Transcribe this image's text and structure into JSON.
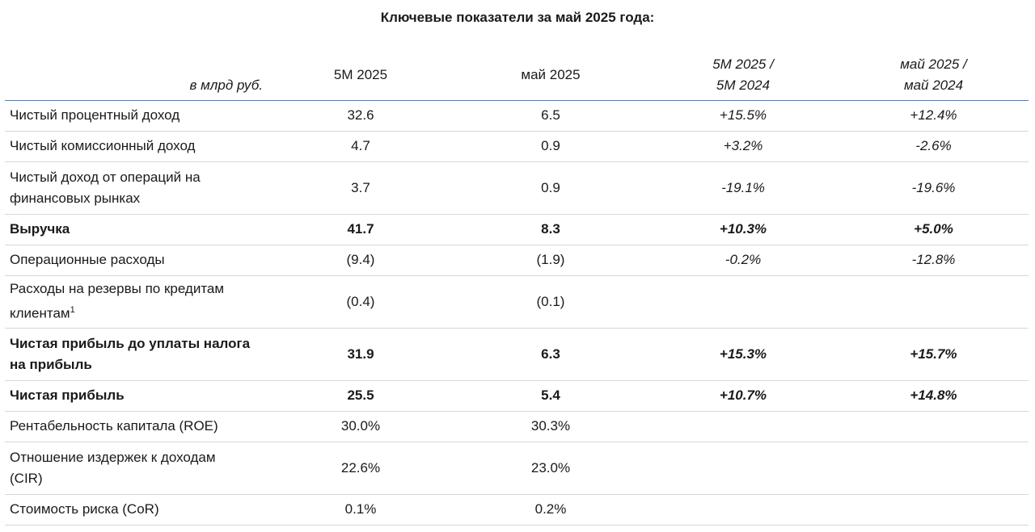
{
  "title": "Ключевые показатели за май 2025 года:",
  "header": {
    "unit": "в млрд руб.",
    "col1": "5M 2025",
    "col2": "май 2025",
    "col3_line1": "5M 2025 /",
    "col3_line2": "5M 2024",
    "col4_line1": "май 2025 /",
    "col4_line2": "май 2024"
  },
  "rows": [
    {
      "label": "Чистый процентный доход",
      "v5m": "32.6",
      "vmay": "6.5",
      "yoy5m": "+15.5%",
      "yoymay": "+12.4%"
    },
    {
      "label": "Чистый комиссионный доход",
      "v5m": "4.7",
      "vmay": "0.9",
      "yoy5m": "+3.2%",
      "yoymay": "-2.6%"
    },
    {
      "label_line1": "Чистый доход от операций на",
      "label_line2": "финансовых рынках",
      "v5m": "3.7",
      "vmay": "0.9",
      "yoy5m": "-19.1%",
      "yoymay": "-19.6%"
    },
    {
      "label": "Выручка",
      "v5m": "41.7",
      "vmay": "8.3",
      "yoy5m": "+10.3%",
      "yoymay": "+5.0%"
    },
    {
      "label": "Операционные расходы",
      "v5m": "(9.4)",
      "vmay": "(1.9)",
      "yoy5m": "-0.2%",
      "yoymay": "-12.8%"
    },
    {
      "label_line1": "Расходы на резервы по кредитам",
      "label_line2": "клиентам",
      "footnote": "1",
      "v5m": "(0.4)",
      "vmay": "(0.1)",
      "yoy5m": "",
      "yoymay": ""
    },
    {
      "label_line1": "Чистая прибыль до уплаты налога",
      "label_line2": "на прибыль",
      "v5m": "31.9",
      "vmay": "6.3",
      "yoy5m": "+15.3%",
      "yoymay": "+15.7%"
    },
    {
      "label": "Чистая прибыль",
      "v5m": "25.5",
      "vmay": "5.4",
      "yoy5m": "+10.7%",
      "yoymay": "+14.8%"
    },
    {
      "label": "Рентабельность капитала (ROE)",
      "v5m": "30.0%",
      "vmay": "30.3%",
      "yoy5m": "",
      "yoymay": ""
    },
    {
      "label_line1": "Отношение издержек к доходам",
      "label_line2": "(CIR)",
      "v5m": "22.6%",
      "vmay": "23.0%",
      "yoy5m": "",
      "yoymay": ""
    },
    {
      "label": "Стоимость риска (CoR)",
      "v5m": "0.1%",
      "vmay": "0.2%",
      "yoy5m": "",
      "yoymay": ""
    }
  ]
}
